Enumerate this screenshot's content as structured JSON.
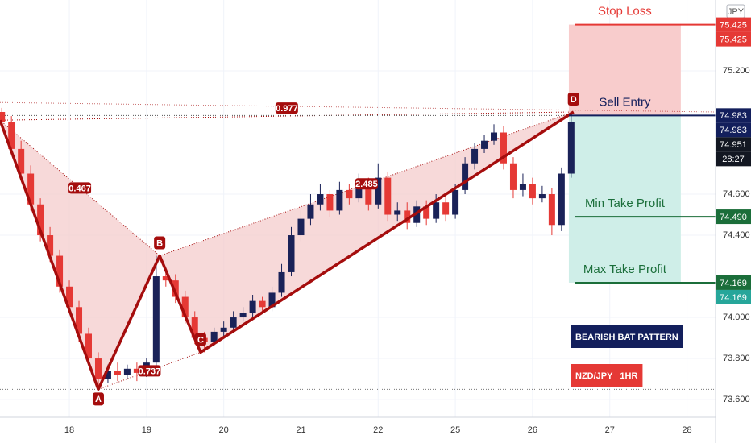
{
  "chart_data": {
    "type": "candlestick",
    "currency": "JPY",
    "x": [
      0.125,
      0.25,
      0.375,
      0.5,
      0.625,
      0.75,
      0.875,
      1.0,
      1.125,
      1.25,
      1.375,
      1.5,
      1.625,
      1.75,
      1.875,
      2.0,
      2.125,
      2.25,
      2.375,
      2.5,
      2.625,
      2.75,
      2.875,
      3.0,
      3.125,
      3.25,
      3.375,
      3.5,
      3.625,
      3.75,
      3.875,
      4.0,
      4.125,
      4.25,
      4.375,
      4.5,
      4.625,
      4.75,
      4.875,
      5.0,
      5.125,
      5.25,
      5.375,
      5.5,
      5.625,
      5.75,
      5.875,
      6.0,
      6.125,
      6.25,
      6.375,
      6.5,
      6.625,
      6.75,
      6.875,
      7.0,
      7.125,
      7.25,
      7.375,
      7.5
    ],
    "open": [
      75.0,
      74.95,
      74.82,
      74.7,
      74.55,
      74.4,
      74.3,
      74.15,
      74.05,
      73.92,
      73.8,
      73.7,
      73.74,
      73.72,
      73.75,
      73.73,
      73.78,
      74.2,
      74.18,
      74.1,
      74.0,
      73.9,
      73.88,
      73.93,
      73.95,
      74.0,
      74.02,
      74.08,
      74.05,
      74.12,
      74.22,
      74.4,
      74.48,
      74.55,
      74.6,
      74.52,
      74.62,
      74.58,
      74.66,
      74.55,
      74.68,
      74.5,
      74.52,
      74.46,
      74.54,
      74.48,
      74.56,
      74.5,
      74.62,
      74.75,
      74.82,
      74.86,
      74.9,
      74.75,
      74.62,
      74.65,
      74.58,
      74.6,
      74.45,
      74.7
    ],
    "high": [
      75.02,
      74.98,
      74.86,
      74.74,
      74.58,
      74.44,
      74.33,
      74.18,
      74.08,
      73.95,
      73.83,
      73.77,
      73.78,
      73.77,
      73.78,
      73.8,
      74.3,
      74.24,
      74.21,
      74.13,
      74.03,
      73.93,
      73.95,
      73.98,
      74.03,
      74.05,
      74.11,
      74.1,
      74.15,
      74.26,
      74.44,
      74.52,
      74.6,
      74.65,
      74.62,
      74.66,
      74.65,
      74.7,
      74.68,
      74.75,
      74.71,
      74.56,
      74.56,
      74.57,
      74.57,
      74.6,
      74.59,
      74.65,
      74.78,
      74.85,
      74.89,
      74.94,
      74.93,
      74.78,
      74.7,
      74.68,
      74.64,
      74.63,
      74.73,
      74.99
    ],
    "low": [
      74.93,
      74.8,
      74.68,
      74.52,
      74.37,
      74.27,
      74.12,
      74.02,
      73.88,
      73.77,
      73.65,
      73.68,
      73.69,
      73.7,
      73.69,
      73.71,
      73.76,
      74.15,
      74.07,
      73.97,
      73.87,
      73.83,
      73.86,
      73.9,
      73.93,
      73.98,
      74.0,
      74.02,
      74.03,
      74.1,
      74.2,
      74.37,
      74.45,
      74.52,
      74.49,
      74.5,
      74.55,
      74.56,
      74.52,
      74.53,
      74.47,
      74.47,
      74.43,
      74.44,
      74.45,
      74.46,
      74.47,
      74.48,
      74.6,
      74.72,
      74.8,
      74.84,
      74.72,
      74.58,
      74.59,
      74.55,
      74.56,
      74.4,
      74.42,
      74.68
    ],
    "close": [
      74.95,
      74.82,
      74.7,
      74.55,
      74.4,
      74.3,
      74.15,
      74.05,
      73.92,
      73.8,
      73.7,
      73.74,
      73.72,
      73.75,
      73.73,
      73.78,
      74.2,
      74.18,
      74.1,
      74.0,
      73.9,
      73.88,
      73.93,
      73.95,
      74.0,
      74.02,
      74.08,
      74.05,
      74.12,
      74.22,
      74.4,
      74.48,
      74.55,
      74.6,
      74.52,
      74.62,
      74.58,
      74.66,
      74.55,
      74.68,
      74.5,
      74.52,
      74.46,
      74.54,
      74.48,
      74.56,
      74.5,
      74.62,
      74.75,
      74.82,
      74.86,
      74.9,
      74.75,
      74.62,
      74.65,
      74.58,
      74.6,
      74.45,
      74.7,
      74.95
    ],
    "up_color": "#1a2258",
    "down_color": "#e53935",
    "xlim": [
      0.102,
      9.37
    ],
    "xticks": [
      {
        "value": 1,
        "label": "18"
      },
      {
        "value": 2,
        "label": "19"
      },
      {
        "value": 3,
        "label": "20"
      },
      {
        "value": 4,
        "label": "21"
      },
      {
        "value": 5,
        "label": "22"
      },
      {
        "value": 6,
        "label": "25"
      },
      {
        "value": 7,
        "label": "26"
      },
      {
        "value": 8,
        "label": "27"
      },
      {
        "value": 9,
        "label": "28"
      }
    ],
    "ylim": [
      73.514,
      75.545
    ],
    "yticks": [
      {
        "value": 73.6,
        "label": "73.600"
      },
      {
        "value": 73.8,
        "label": "73.800"
      },
      {
        "value": 74.0,
        "label": "74.000"
      },
      {
        "value": 74.4,
        "label": "74.400"
      },
      {
        "value": 74.6,
        "label": "74.600"
      },
      {
        "value": 75.2,
        "label": "75.200"
      }
    ],
    "grid": true,
    "pattern": {
      "x": [
        0.102,
        1.375,
        2.17,
        2.7,
        7.53
      ],
      "y": [
        74.96,
        73.65,
        74.3,
        73.83,
        75.0
      ],
      "labels": [
        null,
        "A",
        "B",
        "C",
        "D"
      ],
      "ratios": [
        0.467,
        0.737,
        2.485,
        0.977
      ],
      "color": "#a50d0d",
      "fill": "#f3c9c9"
    },
    "trade": {
      "x_start": 7.47,
      "x_end": 8.92,
      "levels": [
        {
          "name": "Stop Loss",
          "value": 75.425,
          "price_label": "75.425",
          "color": "#e53935"
        },
        {
          "name": "Sell Entry",
          "value": 74.983,
          "price_label": "74.983",
          "color": "#131f5c"
        },
        {
          "name": "Min Take Profit",
          "value": 74.49,
          "price_label": "74.490",
          "color": "#1b6e3a"
        },
        {
          "name": "Max Take Profit",
          "value": 74.169,
          "price_label": "74.169",
          "color": "#1b6e3a"
        }
      ],
      "risk_fill": "#f8cccc",
      "reward_fill": "#cfeee8"
    },
    "last_price": {
      "value": 74.951,
      "label": "74.951"
    },
    "countdown": "28:27",
    "annotations": [
      {
        "text": "BEARISH BAT PATTERN",
        "color": "#131f5c"
      },
      {
        "text": "NZD/JPY   1HR",
        "color": "#e53935"
      }
    ]
  }
}
